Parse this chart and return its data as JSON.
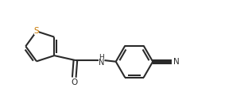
{
  "background_color": "#ffffff",
  "line_color": "#2a2a2a",
  "S_color": "#c87800",
  "O_color": "#2a2a2a",
  "N_color": "#2a2a2a",
  "line_width": 1.5,
  "font_size_S": 7.5,
  "font_size_label": 7.0,
  "font_size_NH": 7.0,
  "font_size_N": 7.5,
  "font_size_O": 7.5,
  "xlim": [
    0,
    9.5
  ],
  "ylim": [
    0,
    3.8
  ],
  "figsize": [
    3.17,
    1.4
  ],
  "dpi": 100
}
